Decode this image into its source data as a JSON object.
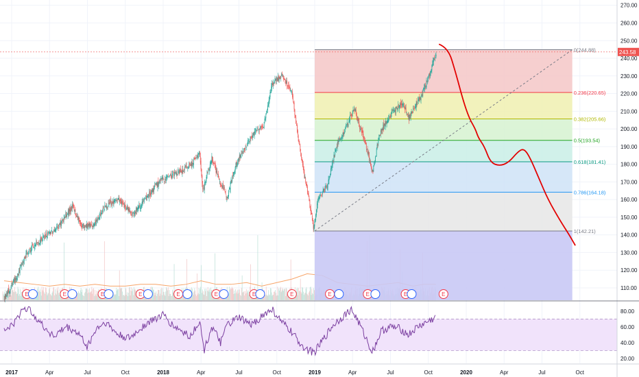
{
  "chart_data": {
    "type": "candlestick",
    "title": "",
    "price_axis": {
      "ticks": [
        "110.00",
        "120.00",
        "130.00",
        "140.00",
        "150.00",
        "160.00",
        "170.00",
        "180.00",
        "190.00",
        "200.00",
        "210.00",
        "220.00",
        "230.00",
        "240.00",
        "250.00",
        "260.00",
        "270.00"
      ],
      "range": [
        103,
        273
      ],
      "last_price": "243.58"
    },
    "rsi_axis": {
      "ticks": [
        "20.00",
        "40.00",
        "60.00",
        "80.00"
      ],
      "range": [
        14,
        92
      ],
      "upper_band": 70,
      "lower_band": 30
    },
    "time_axis": {
      "labels": [
        {
          "label": "2017",
          "t": 0.0,
          "bold": true
        },
        {
          "label": "Apr",
          "t": 0.25
        },
        {
          "label": "Jul",
          "t": 0.5
        },
        {
          "label": "Oct",
          "t": 0.75
        },
        {
          "label": "2018",
          "t": 1.0,
          "bold": true
        },
        {
          "label": "Apr",
          "t": 1.25
        },
        {
          "label": "Jul",
          "t": 1.5
        },
        {
          "label": "Oct",
          "t": 1.75
        },
        {
          "label": "2019",
          "t": 2.0,
          "bold": true
        },
        {
          "label": "Apr",
          "t": 2.25
        },
        {
          "label": "Jul",
          "t": 2.5
        },
        {
          "label": "Oct",
          "t": 2.75
        },
        {
          "label": "2020",
          "t": 3.0,
          "bold": true
        },
        {
          "label": "Apr",
          "t": 3.25
        },
        {
          "label": "Jul",
          "t": 3.5
        },
        {
          "label": "Oct",
          "t": 3.75
        }
      ]
    },
    "price_path": [
      [
        -0.05,
        104
      ],
      [
        0.04,
        118
      ],
      [
        0.1,
        130
      ],
      [
        0.2,
        138
      ],
      [
        0.3,
        144
      ],
      [
        0.4,
        156
      ],
      [
        0.46,
        145
      ],
      [
        0.55,
        146
      ],
      [
        0.6,
        155
      ],
      [
        0.7,
        160
      ],
      [
        0.8,
        152
      ],
      [
        0.9,
        162
      ],
      [
        0.97,
        170
      ],
      [
        1.05,
        174
      ],
      [
        1.12,
        176
      ],
      [
        1.18,
        180
      ],
      [
        1.24,
        186
      ],
      [
        1.26,
        165
      ],
      [
        1.32,
        184
      ],
      [
        1.37,
        170
      ],
      [
        1.42,
        162
      ],
      [
        1.48,
        180
      ],
      [
        1.54,
        190
      ],
      [
        1.6,
        198
      ],
      [
        1.66,
        202
      ],
      [
        1.72,
        226
      ],
      [
        1.78,
        230
      ],
      [
        1.82,
        225
      ],
      [
        1.85,
        220
      ],
      [
        1.88,
        200
      ],
      [
        1.92,
        178
      ],
      [
        1.96,
        160
      ],
      [
        1.99,
        144
      ],
      [
        2.02,
        160
      ],
      [
        2.08,
        168
      ],
      [
        2.14,
        190
      ],
      [
        2.2,
        200
      ],
      [
        2.26,
        212
      ],
      [
        2.3,
        200
      ],
      [
        2.34,
        190
      ],
      [
        2.38,
        175
      ],
      [
        2.42,
        195
      ],
      [
        2.46,
        203
      ],
      [
        2.52,
        210
      ],
      [
        2.58,
        215
      ],
      [
        2.62,
        206
      ],
      [
        2.66,
        213
      ],
      [
        2.7,
        218
      ],
      [
        2.76,
        232
      ],
      [
        2.8,
        243.58
      ]
    ],
    "volume_ma_path": [
      [
        -0.05,
        114
      ],
      [
        0.05,
        113
      ],
      [
        0.15,
        112
      ],
      [
        0.25,
        111
      ],
      [
        0.35,
        112
      ],
      [
        0.45,
        111
      ],
      [
        0.55,
        112
      ],
      [
        0.65,
        111
      ],
      [
        0.75,
        111
      ],
      [
        0.85,
        112
      ],
      [
        0.95,
        112
      ],
      [
        1.05,
        111
      ],
      [
        1.15,
        112
      ],
      [
        1.25,
        114
      ],
      [
        1.35,
        112
      ],
      [
        1.45,
        112
      ],
      [
        1.55,
        113
      ],
      [
        1.65,
        111
      ],
      [
        1.75,
        113
      ],
      [
        1.85,
        115
      ],
      [
        1.95,
        118
      ],
      [
        2.05,
        117
      ],
      [
        2.15,
        113
      ],
      [
        2.25,
        112
      ],
      [
        2.35,
        111
      ],
      [
        2.45,
        112
      ],
      [
        2.55,
        113
      ],
      [
        2.65,
        111
      ],
      [
        2.72,
        112
      ],
      [
        2.8,
        112
      ]
    ],
    "rsi_path": [
      [
        -0.05,
        55
      ],
      [
        0.02,
        65
      ],
      [
        0.08,
        85
      ],
      [
        0.14,
        78
      ],
      [
        0.2,
        62
      ],
      [
        0.28,
        48
      ],
      [
        0.36,
        60
      ],
      [
        0.44,
        52
      ],
      [
        0.5,
        35
      ],
      [
        0.56,
        58
      ],
      [
        0.62,
        66
      ],
      [
        0.7,
        50
      ],
      [
        0.78,
        45
      ],
      [
        0.86,
        60
      ],
      [
        0.94,
        70
      ],
      [
        1.0,
        75
      ],
      [
        1.06,
        62
      ],
      [
        1.12,
        55
      ],
      [
        1.18,
        48
      ],
      [
        1.24,
        68
      ],
      [
        1.27,
        30
      ],
      [
        1.32,
        60
      ],
      [
        1.38,
        40
      ],
      [
        1.42,
        62
      ],
      [
        1.5,
        72
      ],
      [
        1.58,
        62
      ],
      [
        1.66,
        75
      ],
      [
        1.72,
        82
      ],
      [
        1.78,
        66
      ],
      [
        1.84,
        55
      ],
      [
        1.9,
        40
      ],
      [
        1.96,
        30
      ],
      [
        2.0,
        28
      ],
      [
        2.06,
        45
      ],
      [
        2.12,
        62
      ],
      [
        2.18,
        72
      ],
      [
        2.24,
        82
      ],
      [
        2.28,
        70
      ],
      [
        2.34,
        45
      ],
      [
        2.38,
        28
      ],
      [
        2.44,
        55
      ],
      [
        2.5,
        60
      ],
      [
        2.56,
        58
      ],
      [
        2.62,
        50
      ],
      [
        2.68,
        60
      ],
      [
        2.74,
        66
      ],
      [
        2.8,
        72
      ]
    ],
    "fibonacci": {
      "t_start": 2.0,
      "t_end": 3.7,
      "levels": [
        {
          "ratio": 0,
          "price": 244.88,
          "label": "0(244.88)",
          "color": "#787b86",
          "fill": "#f4c7c7"
        },
        {
          "ratio": 0.236,
          "price": 220.65,
          "label": "0.236(220.65)",
          "color": "#f23645",
          "fill": "#f0f0b0"
        },
        {
          "ratio": 0.382,
          "price": 205.66,
          "label": "0.382(205.66)",
          "color": "#b0b800",
          "fill": "#d6f2d0"
        },
        {
          "ratio": 0.5,
          "price": 193.54,
          "label": "0.5(193.54)",
          "color": "#22a322",
          "fill": "#c9efe6"
        },
        {
          "ratio": 0.618,
          "price": 181.41,
          "label": "0.618(181.41)",
          "color": "#089981",
          "fill": "#cfe3f7"
        },
        {
          "ratio": 0.786,
          "price": 164.18,
          "label": "0.786(164.18)",
          "color": "#2196f3",
          "fill": "#e6e6e6"
        },
        {
          "ratio": 1,
          "price": 142.21,
          "label": "1(142.21)",
          "color": "#787b86",
          "fill": "#c9c9f5"
        }
      ]
    },
    "projection_path": [
      [
        2.82,
        248
      ],
      [
        2.88,
        246
      ],
      [
        2.93,
        232
      ],
      [
        2.98,
        216
      ],
      [
        3.02,
        206
      ],
      [
        3.06,
        200
      ],
      [
        3.08,
        195
      ],
      [
        3.12,
        190
      ],
      [
        3.16,
        181
      ],
      [
        3.22,
        179
      ],
      [
        3.28,
        181
      ],
      [
        3.34,
        187
      ],
      [
        3.38,
        189
      ],
      [
        3.42,
        184
      ],
      [
        3.48,
        172
      ],
      [
        3.54,
        160
      ],
      [
        3.62,
        148
      ],
      [
        3.68,
        140
      ],
      [
        3.72,
        134
      ]
    ],
    "earnings_markers": {
      "label": "E",
      "t": [
        0.1,
        0.35,
        0.6,
        0.85,
        1.1,
        1.35,
        1.6,
        1.85,
        2.1,
        2.35,
        2.6,
        2.85
      ]
    },
    "dividend_t": [
      0.14,
      0.4,
      0.64,
      0.9,
      1.16,
      1.4,
      1.64,
      2.16,
      2.4,
      2.64
    ]
  }
}
